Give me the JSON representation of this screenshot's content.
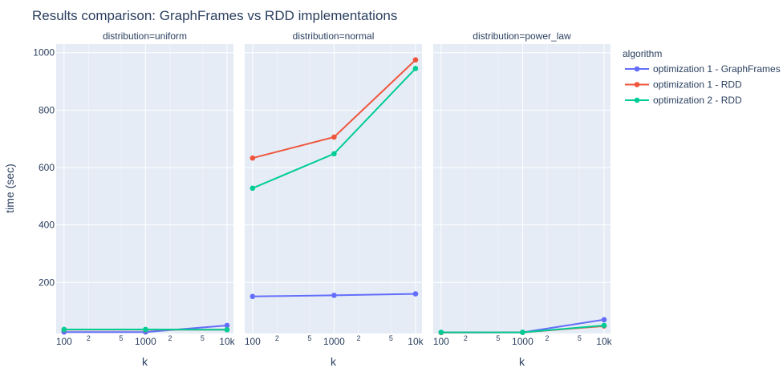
{
  "chart_data": {
    "type": "line",
    "title": "Results comparison: GraphFrames vs RDD implementations",
    "xlabel": "k",
    "ylabel": "time (sec)",
    "x_scale": "log",
    "xlim": [
      80,
      12000
    ],
    "ylim": [
      22,
      1030
    ],
    "x_major_ticks": [
      {
        "v": 100,
        "label": "100"
      },
      {
        "v": 1000,
        "label": "1000"
      },
      {
        "v": 10000,
        "label": "10k"
      }
    ],
    "x_minor_ticks": [
      {
        "v": 200,
        "label": "2"
      },
      {
        "v": 500,
        "label": "5"
      },
      {
        "v": 2000,
        "label": "2"
      },
      {
        "v": 5000,
        "label": "5"
      }
    ],
    "y_ticks": [
      200,
      400,
      600,
      800,
      1000
    ],
    "legend": {
      "title": "algorithm",
      "placement": "right"
    },
    "series_style": [
      {
        "name": "optimization 1 - GraphFrames",
        "color": "#636efa"
      },
      {
        "name": "optimization 1 - RDD",
        "color": "#ef553b"
      },
      {
        "name": "optimization 2 - RDD",
        "color": "#00cc96"
      }
    ],
    "panels": [
      {
        "title": "distribution=uniform",
        "x": [
          100,
          1000,
          10000
        ],
        "series": [
          {
            "name": "optimization 1 - GraphFrames",
            "values": [
              27,
              27,
              50
            ]
          },
          {
            "name": "optimization 1 - RDD",
            "values": [
              35,
              35,
              35
            ]
          },
          {
            "name": "optimization 2 - RDD",
            "values": [
              36,
              36,
              35
            ]
          }
        ]
      },
      {
        "title": "distribution=normal",
        "x": [
          100,
          1000,
          10000
        ],
        "series": [
          {
            "name": "optimization 1 - GraphFrames",
            "values": [
              151,
              155,
              160
            ]
          },
          {
            "name": "optimization 1 - RDD",
            "values": [
              633,
              706,
              975
            ]
          },
          {
            "name": "optimization 2 - RDD",
            "values": [
              528,
              648,
              945
            ]
          }
        ]
      },
      {
        "title": "distribution=power_law",
        "x": [
          100,
          1000,
          10000
        ],
        "series": [
          {
            "name": "optimization 1 - GraphFrames",
            "values": [
              26,
              26,
              70
            ]
          },
          {
            "name": "optimization 1 - RDD",
            "values": [
              25,
              26,
              48
            ]
          },
          {
            "name": "optimization 2 - RDD",
            "values": [
              26,
              26,
              50
            ]
          }
        ]
      }
    ]
  }
}
